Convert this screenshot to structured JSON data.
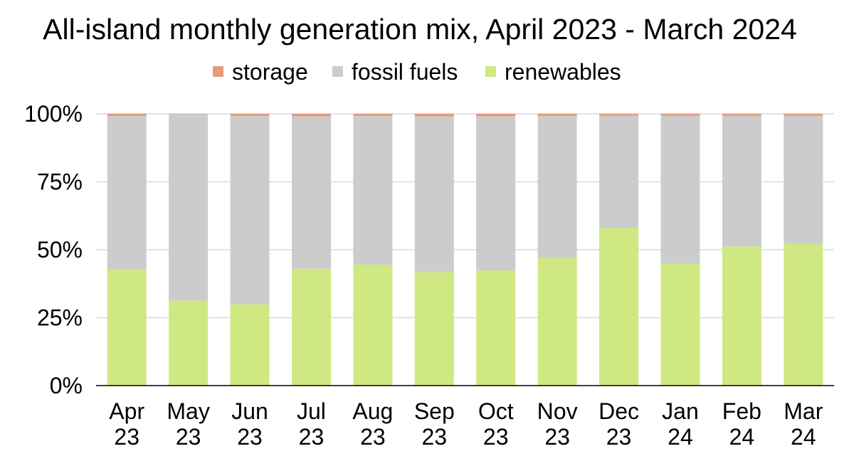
{
  "chart_data": {
    "type": "bar",
    "stacked": true,
    "title": "All-island monthly generation mix, April 2023 - March 2024",
    "xlabel": "",
    "ylabel": "",
    "ylim": [
      0,
      100
    ],
    "yticks": [
      "0%",
      "25%",
      "50%",
      "75%",
      "100%"
    ],
    "ytick_values": [
      0,
      25,
      50,
      75,
      100
    ],
    "categories": [
      [
        "Apr",
        "23"
      ],
      [
        "May",
        "23"
      ],
      [
        "Jun",
        "23"
      ],
      [
        "Jul",
        "23"
      ],
      [
        "Aug",
        "23"
      ],
      [
        "Sep",
        "23"
      ],
      [
        "Oct",
        "23"
      ],
      [
        "Nov",
        "23"
      ],
      [
        "Dec",
        "23"
      ],
      [
        "Jan",
        "24"
      ],
      [
        "Feb",
        "24"
      ],
      [
        "Mar",
        "24"
      ]
    ],
    "series": [
      {
        "name": "renewables",
        "color": "#d0e882",
        "values": [
          42.7,
          31.3,
          29.9,
          43.0,
          44.5,
          41.8,
          42.4,
          47.0,
          58.0,
          44.8,
          51.2,
          52.2
        ]
      },
      {
        "name": "fossil fuels",
        "color": "#cccccc",
        "values": [
          56.5,
          68.6,
          69.3,
          56.1,
          54.7,
          57.3,
          56.7,
          52.2,
          41.3,
          54.5,
          48.1,
          47.1
        ]
      },
      {
        "name": "storage",
        "color": "#e89a7a",
        "values": [
          0.8,
          0.1,
          0.8,
          0.9,
          0.8,
          0.9,
          0.9,
          0.8,
          0.7,
          0.7,
          0.7,
          0.7
        ]
      }
    ],
    "legend": {
      "placement": "top-center",
      "order": [
        "storage",
        "fossil fuels",
        "renewables"
      ]
    },
    "grid": true,
    "gridColor": "#d9d9d9",
    "axisColor": "#000000"
  }
}
